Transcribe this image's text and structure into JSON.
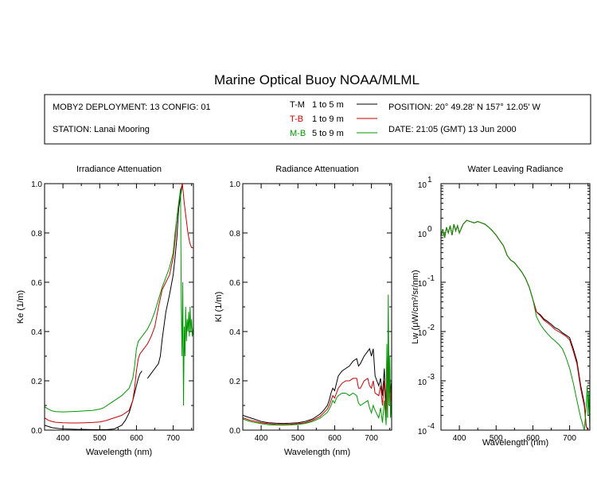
{
  "title": "Marine Optical Buoy NOAA/MLML",
  "info": {
    "deployment": "MOBY2 DEPLOYMENT: 13 CONFIG: 01",
    "station": "STATION: Lanai Mooring",
    "position": "POSITION: 20° 49.28' N   157° 12.05' W",
    "date": "DATE: 21:05 (GMT) 13 Jun 2000",
    "legend": [
      {
        "key": "T-M",
        "range": "1 to 5  m",
        "color": "#000000"
      },
      {
        "key": "T-B",
        "range": "1 to 9  m",
        "color": "#cc0000"
      },
      {
        "key": "M-B",
        "range": "5 to 9  m",
        "color": "#009900"
      }
    ]
  },
  "chart_data": [
    {
      "type": "line",
      "title": "Irradiance Attenuation",
      "xlabel": "Wavelength (nm)",
      "ylabel": "Ke  (1/m)",
      "xlim": [
        350,
        755
      ],
      "ylim": [
        0,
        1.0
      ],
      "xticks": [
        400,
        500,
        600,
        700
      ],
      "yticks": [
        0.0,
        0.2,
        0.4,
        0.6,
        0.8,
        1.0
      ],
      "ytick_labels": [
        "0.0",
        "0.2",
        "0.4",
        "0.6",
        "0.8",
        "1.0"
      ],
      "series": [
        {
          "key": "T-M",
          "color": "#000000",
          "x": [
            350,
            360,
            370,
            380,
            390,
            400,
            420,
            440,
            460,
            480,
            500,
            520,
            540,
            560,
            570,
            580,
            590,
            600,
            605,
            610,
            615
          ],
          "y": [
            0.02,
            0.015,
            0.01,
            0.008,
            0.006,
            0.005,
            0.004,
            0.003,
            0.003,
            0.002,
            0.002,
            0.002,
            0.005,
            0.02,
            0.04,
            0.07,
            0.12,
            0.18,
            0.21,
            0.23,
            0.24
          ],
          "segments": [
            {
              "x": [
                630,
                640,
                650,
                660,
                665,
                670,
                680,
                690,
                700,
                705,
                710,
                715,
                720,
                725
              ],
              "y": [
                0.21,
                0.23,
                0.25,
                0.27,
                0.3,
                0.37,
                0.48,
                0.55,
                0.63,
                0.7,
                0.78,
                0.9,
                0.95,
                1.0
              ]
            }
          ]
        },
        {
          "key": "T-B",
          "color": "#cc0000",
          "x": [
            350,
            360,
            370,
            380,
            400,
            420,
            440,
            460,
            480,
            500,
            510,
            520,
            530,
            540,
            560,
            580,
            590,
            595,
            600,
            605,
            610,
            615,
            620,
            630,
            640,
            650,
            660,
            670,
            680,
            690,
            700,
            705,
            710,
            715,
            720,
            725,
            730,
            735,
            740,
            745,
            750,
            755
          ],
          "y": [
            0.05,
            0.04,
            0.035,
            0.032,
            0.03,
            0.029,
            0.029,
            0.03,
            0.031,
            0.033,
            0.036,
            0.04,
            0.045,
            0.05,
            0.06,
            0.08,
            0.12,
            0.17,
            0.24,
            0.29,
            0.31,
            0.32,
            0.33,
            0.35,
            0.38,
            0.42,
            0.5,
            0.57,
            0.6,
            0.63,
            0.7,
            0.77,
            0.86,
            0.92,
            0.97,
            1.0,
            0.92,
            0.86,
            0.8,
            0.76,
            0.74,
            0.74
          ]
        },
        {
          "key": "M-B",
          "color": "#009900",
          "x": [
            350,
            360,
            370,
            380,
            400,
            420,
            440,
            460,
            480,
            500,
            510,
            520,
            530,
            540,
            560,
            580,
            590,
            595,
            600,
            605,
            610,
            615,
            620,
            630,
            640,
            650,
            660,
            670,
            680,
            690,
            700,
            705,
            710,
            715,
            720,
            722,
            724,
            726,
            728,
            730,
            732,
            734,
            736,
            738,
            740,
            742,
            744,
            746,
            748,
            750,
            752,
            755
          ],
          "y": [
            0.095,
            0.085,
            0.078,
            0.075,
            0.074,
            0.075,
            0.076,
            0.078,
            0.08,
            0.085,
            0.09,
            0.1,
            0.11,
            0.12,
            0.14,
            0.17,
            0.21,
            0.26,
            0.33,
            0.36,
            0.37,
            0.38,
            0.39,
            0.41,
            0.44,
            0.48,
            0.53,
            0.58,
            0.62,
            0.66,
            0.72,
            0.8,
            0.86,
            0.92,
            0.98,
            0.5,
            0.3,
            0.6,
            0.1,
            0.42,
            0.3,
            0.5,
            0.36,
            0.45,
            0.4,
            0.48,
            0.38,
            0.5,
            0.4,
            0.45,
            0.38,
            0.42
          ]
        }
      ]
    },
    {
      "type": "line",
      "title": "Radiance Attenuation",
      "xlabel": "Wavelength (nm)",
      "ylabel": "Kl  (1/m)",
      "xlim": [
        350,
        755
      ],
      "ylim": [
        0,
        1.0
      ],
      "xticks": [
        400,
        500,
        600,
        700
      ],
      "yticks": [
        0.0,
        0.2,
        0.4,
        0.6,
        0.8,
        1.0
      ],
      "ytick_labels": [
        "0.0",
        "0.2",
        "0.4",
        "0.6",
        "0.8",
        "1.0"
      ],
      "series": [
        {
          "key": "T-M",
          "color": "#000000",
          "x": [
            350,
            360,
            370,
            380,
            400,
            420,
            440,
            460,
            480,
            500,
            520,
            540,
            560,
            570,
            580,
            585,
            590,
            595,
            600,
            605,
            610,
            620,
            630,
            640,
            650,
            660,
            665,
            670,
            680,
            690,
            695,
            700,
            705,
            710,
            720,
            725,
            730,
            735,
            740,
            742,
            744,
            746,
            748,
            750,
            752,
            755
          ],
          "y": [
            0.06,
            0.055,
            0.05,
            0.045,
            0.035,
            0.03,
            0.028,
            0.027,
            0.028,
            0.03,
            0.035,
            0.045,
            0.065,
            0.08,
            0.1,
            0.12,
            0.15,
            0.17,
            0.16,
            0.19,
            0.22,
            0.24,
            0.25,
            0.26,
            0.28,
            0.29,
            0.26,
            0.27,
            0.3,
            0.32,
            0.33,
            0.3,
            0.33,
            0.22,
            0.18,
            0.21,
            0.14,
            0.25,
            0.08,
            0.3,
            0.05,
            0.4,
            0.1,
            0.25,
            0.15,
            0.2
          ]
        },
        {
          "key": "T-B",
          "color": "#cc0000",
          "x": [
            350,
            360,
            370,
            380,
            400,
            420,
            440,
            460,
            480,
            500,
            520,
            540,
            560,
            570,
            580,
            585,
            590,
            595,
            600,
            605,
            610,
            620,
            630,
            640,
            650,
            660,
            665,
            670,
            680,
            690,
            695,
            700,
            705,
            710,
            720,
            725,
            730,
            735,
            740,
            742,
            744,
            746,
            748,
            750,
            752,
            755
          ],
          "y": [
            0.05,
            0.045,
            0.04,
            0.037,
            0.03,
            0.026,
            0.024,
            0.023,
            0.024,
            0.026,
            0.03,
            0.04,
            0.055,
            0.07,
            0.085,
            0.1,
            0.12,
            0.14,
            0.13,
            0.15,
            0.17,
            0.19,
            0.2,
            0.2,
            0.21,
            0.21,
            0.17,
            0.17,
            0.2,
            0.21,
            0.18,
            0.17,
            0.2,
            0.15,
            0.14,
            0.18,
            0.1,
            0.2,
            0.05,
            0.25,
            0.08,
            0.35,
            0.12,
            0.22,
            0.1,
            0.18
          ]
        },
        {
          "key": "M-B",
          "color": "#009900",
          "x": [
            350,
            360,
            370,
            380,
            400,
            420,
            440,
            460,
            480,
            500,
            520,
            540,
            560,
            570,
            580,
            585,
            590,
            595,
            600,
            605,
            610,
            620,
            630,
            640,
            650,
            660,
            665,
            670,
            680,
            690,
            695,
            700,
            705,
            710,
            720,
            725,
            730,
            735,
            740,
            742,
            744,
            746,
            748,
            750,
            752,
            755
          ],
          "y": [
            0.045,
            0.04,
            0.035,
            0.032,
            0.026,
            0.022,
            0.02,
            0.02,
            0.021,
            0.023,
            0.027,
            0.035,
            0.048,
            0.06,
            0.072,
            0.085,
            0.1,
            0.12,
            0.11,
            0.13,
            0.14,
            0.15,
            0.15,
            0.14,
            0.15,
            0.14,
            0.11,
            0.1,
            0.11,
            0.12,
            0.09,
            0.07,
            0.1,
            0.08,
            0.05,
            0.09,
            0.03,
            0.12,
            0.02,
            0.35,
            0.05,
            0.55,
            0.1,
            0.3,
            0.05,
            0.12
          ]
        }
      ]
    },
    {
      "type": "line",
      "title": "Water Leaving Radiance",
      "xlabel": "Wavelength (nm)",
      "ylabel": "Lw (μW/cm²/sr/nm)",
      "xlim": [
        350,
        755
      ],
      "ylim": [
        0.0001,
        10
      ],
      "yscale": "log",
      "xticks": [
        400,
        500,
        600,
        700
      ],
      "yticks": [
        0.0001,
        0.001,
        0.01,
        0.1,
        1,
        10
      ],
      "ytick_labels": [
        [
          "10",
          "-4"
        ],
        [
          "10",
          "-3"
        ],
        [
          "10",
          "-2"
        ],
        [
          "10",
          "-1"
        ],
        [
          "10",
          "0"
        ],
        [
          "10",
          "1"
        ]
      ],
      "series": [
        {
          "key": "T-M",
          "color": "#000000",
          "x": [
            350,
            355,
            360,
            365,
            370,
            375,
            380,
            385,
            390,
            395,
            400,
            410,
            420,
            430,
            440,
            450,
            460,
            470,
            480,
            490,
            500,
            510,
            520,
            530,
            540,
            550,
            560,
            570,
            580,
            590,
            600,
            610,
            620,
            630,
            640,
            650,
            660,
            670,
            680,
            690,
            700,
            710,
            720,
            730,
            740,
            745,
            750
          ],
          "y": [
            0.9,
            1.2,
            0.8,
            1.3,
            1.0,
            1.4,
            0.9,
            1.5,
            1.1,
            1.4,
            1.0,
            1.5,
            1.8,
            1.7,
            1.6,
            1.7,
            1.6,
            1.5,
            1.3,
            1.1,
            0.9,
            0.7,
            0.55,
            0.35,
            0.28,
            0.25,
            0.2,
            0.16,
            0.12,
            0.08,
            0.045,
            0.025,
            0.022,
            0.018,
            0.016,
            0.014,
            0.012,
            0.011,
            0.0095,
            0.0085,
            0.0075,
            0.0045,
            0.0025,
            0.0008,
            0.00035,
            0.00012,
            0.0001
          ]
        },
        {
          "key": "T-B",
          "color": "#cc0000",
          "x": [
            350,
            355,
            360,
            365,
            370,
            375,
            380,
            385,
            390,
            395,
            400,
            410,
            420,
            430,
            440,
            450,
            460,
            470,
            480,
            490,
            500,
            510,
            520,
            530,
            540,
            550,
            560,
            570,
            580,
            590,
            600,
            610,
            620,
            630,
            640,
            650,
            660,
            670,
            680,
            690,
            700,
            710,
            720,
            730,
            740,
            745,
            750
          ],
          "y": [
            0.9,
            1.2,
            0.8,
            1.3,
            1.0,
            1.4,
            0.9,
            1.5,
            1.1,
            1.4,
            1.0,
            1.5,
            1.8,
            1.7,
            1.6,
            1.7,
            1.6,
            1.5,
            1.3,
            1.1,
            0.9,
            0.7,
            0.55,
            0.35,
            0.28,
            0.25,
            0.2,
            0.16,
            0.12,
            0.08,
            0.045,
            0.025,
            0.021,
            0.017,
            0.015,
            0.013,
            0.011,
            0.01,
            0.009,
            0.008,
            0.0068,
            0.004,
            0.0022,
            0.0007,
            0.0003,
            0.00012,
            0.0001
          ]
        },
        {
          "key": "M-B",
          "color": "#009900",
          "x": [
            350,
            355,
            360,
            365,
            370,
            375,
            380,
            385,
            390,
            395,
            400,
            410,
            420,
            430,
            440,
            450,
            460,
            470,
            480,
            490,
            500,
            510,
            520,
            530,
            540,
            550,
            560,
            570,
            580,
            590,
            600,
            610,
            620,
            630,
            640,
            650,
            660,
            670,
            680,
            690,
            700,
            710,
            720,
            730,
            740,
            745,
            748,
            750,
            752,
            755
          ],
          "y": [
            0.9,
            1.2,
            0.8,
            1.3,
            1.0,
            1.4,
            0.9,
            1.5,
            1.1,
            1.4,
            1.0,
            1.5,
            1.8,
            1.7,
            1.6,
            1.7,
            1.6,
            1.5,
            1.3,
            1.1,
            0.9,
            0.7,
            0.55,
            0.35,
            0.28,
            0.25,
            0.2,
            0.16,
            0.12,
            0.08,
            0.045,
            0.02,
            0.014,
            0.011,
            0.009,
            0.0075,
            0.0065,
            0.0055,
            0.0045,
            0.003,
            0.0018,
            0.0009,
            0.0004,
            0.00018,
            0.0001,
            0.0003,
            0.0008,
            0.0002,
            0.0006,
            0.0001
          ]
        }
      ]
    }
  ]
}
